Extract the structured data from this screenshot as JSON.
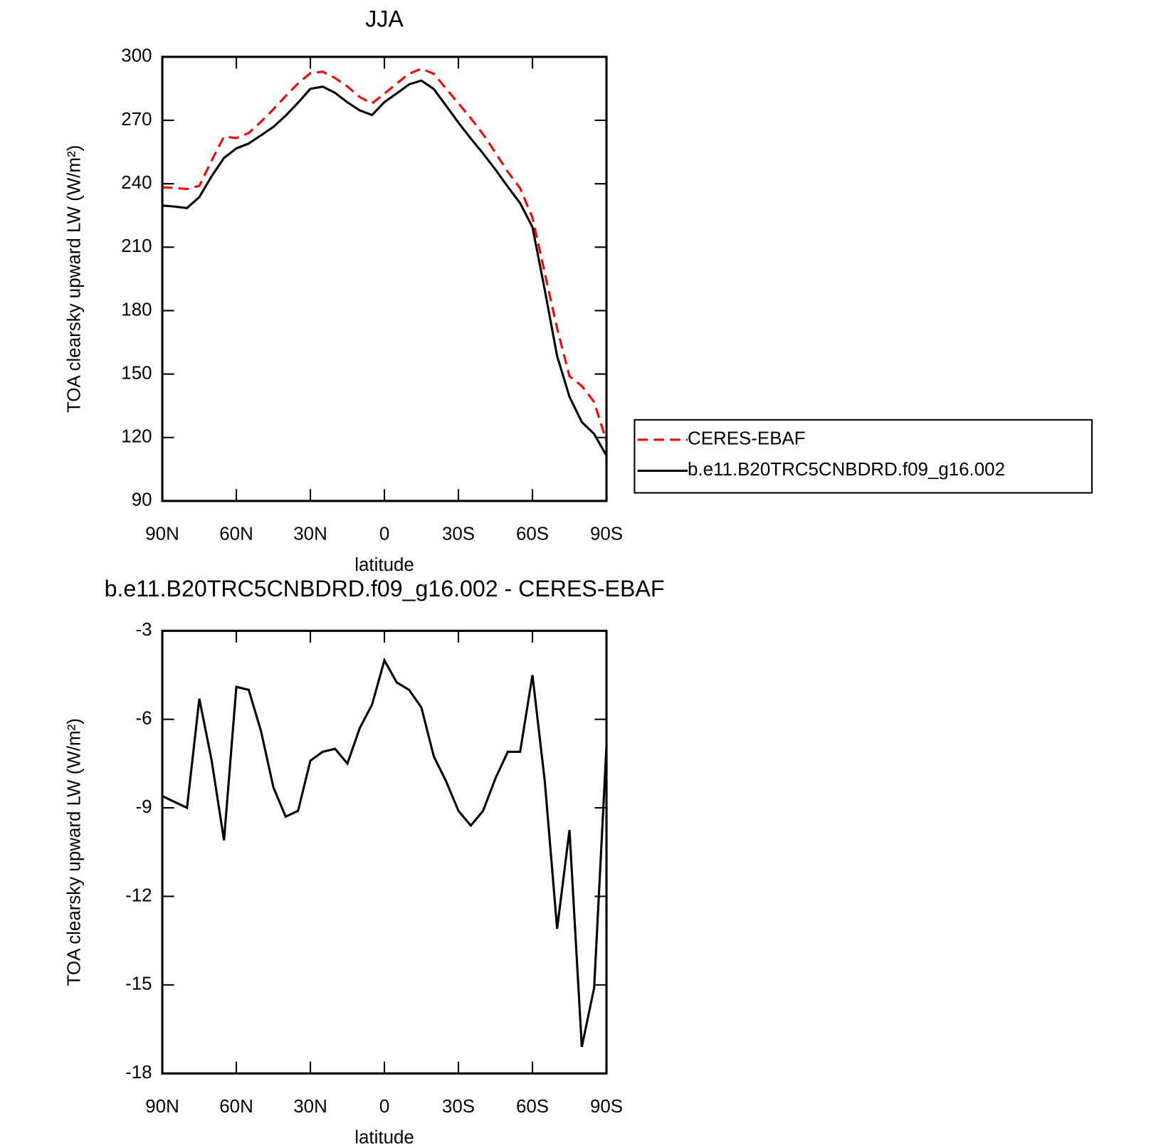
{
  "chart_data": [
    {
      "type": "line",
      "title": "JJA",
      "xlabel": "latitude",
      "ylabel": "TOA clearsky upward LW (W/m²)",
      "x": [
        90,
        85,
        80,
        75,
        70,
        65,
        60,
        55,
        50,
        45,
        40,
        35,
        30,
        25,
        20,
        15,
        10,
        5,
        0,
        -5,
        -10,
        -15,
        -20,
        -25,
        -30,
        -35,
        -40,
        -45,
        -50,
        -55,
        -60,
        -65,
        -70,
        -75,
        -80,
        -85,
        -90
      ],
      "series": [
        {
          "name": "CERES-EBAF",
          "color": "#ff0000",
          "dash": true,
          "values": [
            238.3,
            238,
            237.5,
            239,
            251,
            262.3,
            261.6,
            264,
            269.3,
            275.2,
            281.5,
            287.4,
            292.3,
            293,
            290,
            286,
            281,
            278,
            282.6,
            287.4,
            292,
            294.4,
            292,
            285,
            278,
            271,
            263.4,
            254.7,
            245.7,
            237.9,
            224,
            197.8,
            171.6,
            149,
            144.4,
            136.8,
            118.3
          ]
        },
        {
          "name": "b.e11.B20TRC5CNBDRD.f09_g16.002",
          "color": "#000000",
          "dash": false,
          "values": [
            229.7,
            229.2,
            228.5,
            233.7,
            243.6,
            252.2,
            256.7,
            259,
            262.9,
            266.9,
            272.2,
            278.3,
            284.9,
            285.9,
            283,
            278.5,
            274.7,
            272.5,
            278.6,
            282.7,
            287,
            288.8,
            284.8,
            276.9,
            268.9,
            261.4,
            254.3,
            246.7,
            238.6,
            230.8,
            219.5,
            189.7,
            158.5,
            139.3,
            127.3,
            121.7,
            111.4
          ]
        }
      ],
      "xlim": [
        90,
        -90
      ],
      "xticks": [
        {
          "value": 90,
          "label": "90N"
        },
        {
          "value": 60,
          "label": "60N"
        },
        {
          "value": 30,
          "label": "30N"
        },
        0,
        {
          "value": -30,
          "label": "30S"
        },
        {
          "value": -60,
          "label": "60S"
        },
        {
          "value": -90,
          "label": "90S"
        }
      ],
      "ylim": [
        90,
        300
      ],
      "yticks": [
        90,
        120,
        150,
        180,
        210,
        240,
        270,
        300
      ]
    },
    {
      "type": "line",
      "title": "b.e11.B20TRC5CNBDRD.f09_g16.002 - CERES-EBAF",
      "xlabel": "latitude",
      "ylabel": "TOA clearsky upward LW (W/m²)",
      "x": [
        90,
        85,
        80,
        75,
        70,
        65,
        60,
        55,
        50,
        45,
        40,
        35,
        30,
        25,
        20,
        15,
        10,
        5,
        0,
        -5,
        -10,
        -15,
        -20,
        -25,
        -30,
        -35,
        -40,
        -45,
        -50,
        -55,
        -60,
        -65,
        -70,
        -75,
        -80,
        -85,
        -90
      ],
      "values": [
        -8.6,
        -8.8,
        -9.0,
        -5.3,
        -7.4,
        -10.1,
        -4.9,
        -5.0,
        -6.4,
        -8.3,
        -9.3,
        -9.1,
        -7.4,
        -7.1,
        -7.0,
        -7.5,
        -6.3,
        -5.5,
        -4.0,
        -4.75,
        -5.0,
        -5.6,
        -7.25,
        -8.1,
        -9.1,
        -9.6,
        -9.1,
        -8.0,
        -7.1,
        -7.1,
        -4.5,
        -8.1,
        -13.1,
        -9.75,
        -17.1,
        -15.1,
        -6.9
      ],
      "color": "#000000",
      "xlim": [
        90,
        -90
      ],
      "xticks": [
        {
          "value": 90,
          "label": "90N"
        },
        {
          "value": 60,
          "label": "60N"
        },
        {
          "value": 30,
          "label": "30N"
        },
        0,
        {
          "value": -30,
          "label": "30S"
        },
        {
          "value": -60,
          "label": "60S"
        },
        {
          "value": -90,
          "label": "90S"
        }
      ],
      "ylim": [
        -18,
        -3
      ],
      "yticks": [
        -18,
        -15,
        -12,
        -9,
        -6,
        -3
      ]
    }
  ]
}
